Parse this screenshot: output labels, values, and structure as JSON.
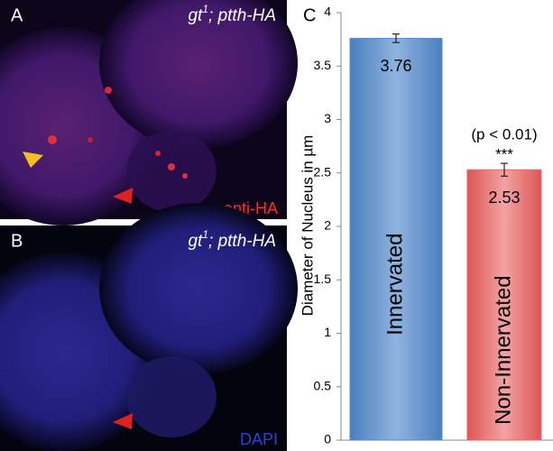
{
  "panels": [
    {
      "letter": "A",
      "genotype": {
        "gene": "gt",
        "allele": "1",
        "rest": "; ptth-HA"
      },
      "stain": "anti-HA"
    },
    {
      "letter": "B",
      "genotype": {
        "gene": "gt",
        "allele": "1",
        "rest": "; ptth-HA"
      },
      "stain": "DAPI"
    }
  ],
  "chart_data": {
    "type": "bar",
    "letter": "C",
    "ylabel": "Diameter of Nucleus in µm",
    "categories": [
      "Innervated",
      "Non-Innervated"
    ],
    "values": [
      3.76,
      2.53
    ],
    "errors": [
      0.04,
      0.06
    ],
    "colors": [
      "#5b8ec9",
      "#e46a6a"
    ],
    "annotation": "(p < 0.01)",
    "significance": "***",
    "ylim": [
      0,
      4
    ],
    "yticks": [
      0,
      0.5,
      1,
      1.5,
      2,
      2.5,
      3,
      3.5,
      4
    ],
    "grid": false
  }
}
